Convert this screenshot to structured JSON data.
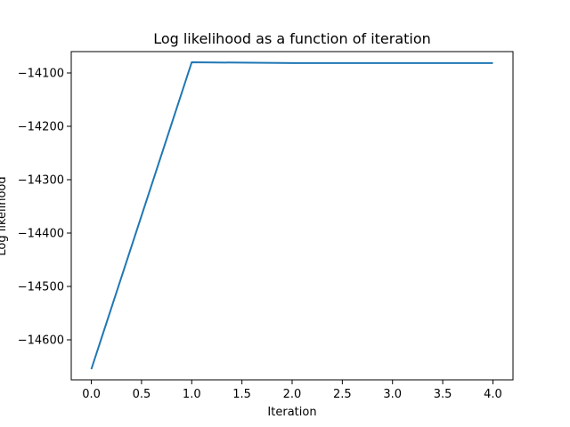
{
  "chart_data": {
    "type": "line",
    "title": "Log likelihood as a function of iteration",
    "xlabel": "Iteration",
    "ylabel": "Log likelihood",
    "xlim": [
      -0.2,
      4.2
    ],
    "ylim": [
      -14675,
      -14060
    ],
    "xticks": [
      0.0,
      0.5,
      1.0,
      1.5,
      2.0,
      2.5,
      3.0,
      3.5,
      4.0
    ],
    "xtick_labels": [
      "0.0",
      "0.5",
      "1.0",
      "1.5",
      "2.0",
      "2.5",
      "3.0",
      "3.5",
      "4.0"
    ],
    "yticks": [
      -14600,
      -14500,
      -14400,
      -14300,
      -14200,
      -14100
    ],
    "ytick_labels": [
      "−14600",
      "−14500",
      "−14400",
      "−14300",
      "−14200",
      "−14100"
    ],
    "grid": false,
    "series": [
      {
        "color": "#1f77b4",
        "x": [
          0,
          1,
          2,
          3,
          4
        ],
        "y": [
          -14655,
          -14080,
          -14081.5,
          -14081.5,
          -14081.5
        ]
      }
    ]
  }
}
